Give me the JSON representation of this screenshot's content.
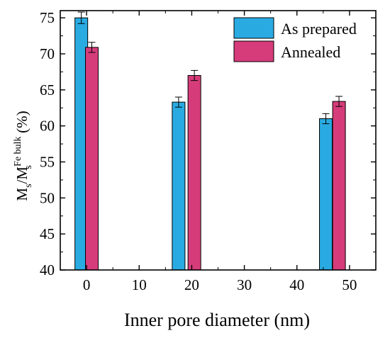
{
  "chart_data": {
    "type": "bar",
    "xlabel": "Inner pore diameter (nm)",
    "ylabel": {
      "main": "M",
      "sub1": "s",
      "slash": "/M",
      "sup": "Fe bulk",
      "sub2": "s",
      "unit": " (%)"
    },
    "xlim": [
      -5,
      55
    ],
    "ylim": [
      40,
      76
    ],
    "xticks": [
      0,
      10,
      20,
      30,
      40,
      50
    ],
    "yticks": [
      40,
      45,
      50,
      55,
      60,
      65,
      70,
      75
    ],
    "grid": false,
    "legend_position": "top-right",
    "series": [
      {
        "name": "As prepared",
        "color": "#29abe2",
        "points": [
          {
            "x": -1,
            "y": 75.0,
            "err": 0.8
          },
          {
            "x": 17.5,
            "y": 63.3,
            "err": 0.7
          },
          {
            "x": 45.5,
            "y": 61.0,
            "err": 0.7
          }
        ]
      },
      {
        "name": "Annealed",
        "color": "#d63c7a",
        "points": [
          {
            "x": 1,
            "y": 70.9,
            "err": 0.7
          },
          {
            "x": 20.5,
            "y": 67.0,
            "err": 0.7
          },
          {
            "x": 48,
            "y": 63.4,
            "err": 0.7
          }
        ]
      }
    ]
  }
}
